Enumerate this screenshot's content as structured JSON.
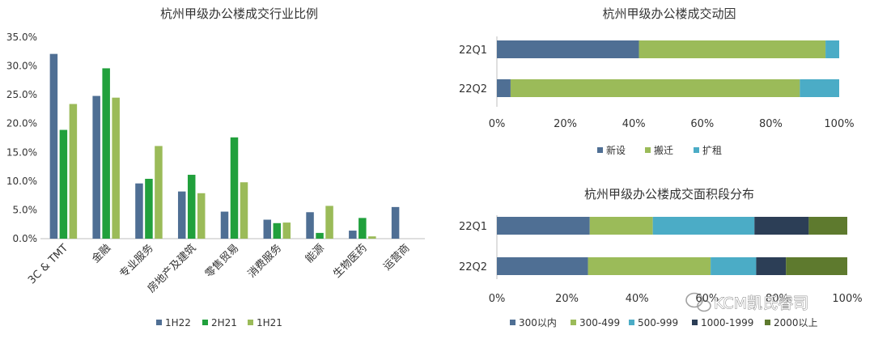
{
  "chart_data": [
    {
      "type": "bar",
      "title": "杭州甲级办公楼成交行业比例",
      "categories": [
        "3C & TMT",
        "金融",
        "专业服务",
        "房地产及建筑",
        "零售贸易",
        "消费服务",
        "能源",
        "生物医药",
        "运营商"
      ],
      "series": [
        {
          "name": "1H22",
          "values": [
            32.1,
            24.8,
            9.6,
            8.2,
            4.7,
            3.3,
            4.6,
            1.4,
            5.5
          ]
        },
        {
          "name": "2H21",
          "values": [
            18.9,
            29.6,
            10.4,
            11.1,
            17.6,
            2.7,
            1.0,
            3.6,
            0.0
          ]
        },
        {
          "name": "1H21",
          "values": [
            23.4,
            24.5,
            16.1,
            7.9,
            9.8,
            2.8,
            5.7,
            0.4,
            0.0
          ]
        }
      ],
      "ylim": [
        0,
        35
      ],
      "yticks": [
        "0.0%",
        "5.0%",
        "10.0%",
        "15.0%",
        "20.0%",
        "25.0%",
        "30.0%",
        "35.0%"
      ],
      "legend": "bottom"
    },
    {
      "type": "bar",
      "orientation": "horizontal",
      "stacked": true,
      "title": "杭州甲级办公楼成交动因",
      "categories": [
        "22Q1",
        "22Q2"
      ],
      "series": [
        {
          "name": "新设",
          "values": [
            41.5,
            4.0
          ]
        },
        {
          "name": "搬迁",
          "values": [
            54.5,
            84.5
          ]
        },
        {
          "name": "扩租",
          "values": [
            4.0,
            11.5
          ]
        }
      ],
      "xlim": [
        0,
        100
      ],
      "xticks": [
        "0%",
        "20%",
        "40%",
        "60%",
        "80%",
        "100%"
      ],
      "legend": "bottom"
    },
    {
      "type": "bar",
      "orientation": "horizontal",
      "stacked": true,
      "title": "杭州甲级办公楼成交面积段分布",
      "categories": [
        "22Q1",
        "22Q2"
      ],
      "series": [
        {
          "name": "300以内",
          "values": [
            26.5,
            26.0
          ]
        },
        {
          "name": "300-499",
          "values": [
            18.0,
            35.0
          ]
        },
        {
          "name": "500-999",
          "values": [
            29.0,
            13.0
          ]
        },
        {
          "name": "1000-1999",
          "values": [
            15.5,
            8.5
          ]
        },
        {
          "name": "2000以上",
          "values": [
            11.0,
            17.5
          ]
        }
      ],
      "xlim": [
        0,
        100
      ],
      "xticks": [
        "0%",
        "20%",
        "40%",
        "60%",
        "80%",
        "100%"
      ],
      "legend": "bottom"
    }
  ],
  "colors": {
    "blue_dark": "#4f6f94",
    "green": "#21a03c",
    "green_light": "#9bbb59",
    "cyan": "#4bacc6",
    "navy": "#2c3e56",
    "olive": "#5e7a2e"
  },
  "watermark": {
    "text": "KCM凯氏睿司",
    "icon": "wechat-icon"
  }
}
